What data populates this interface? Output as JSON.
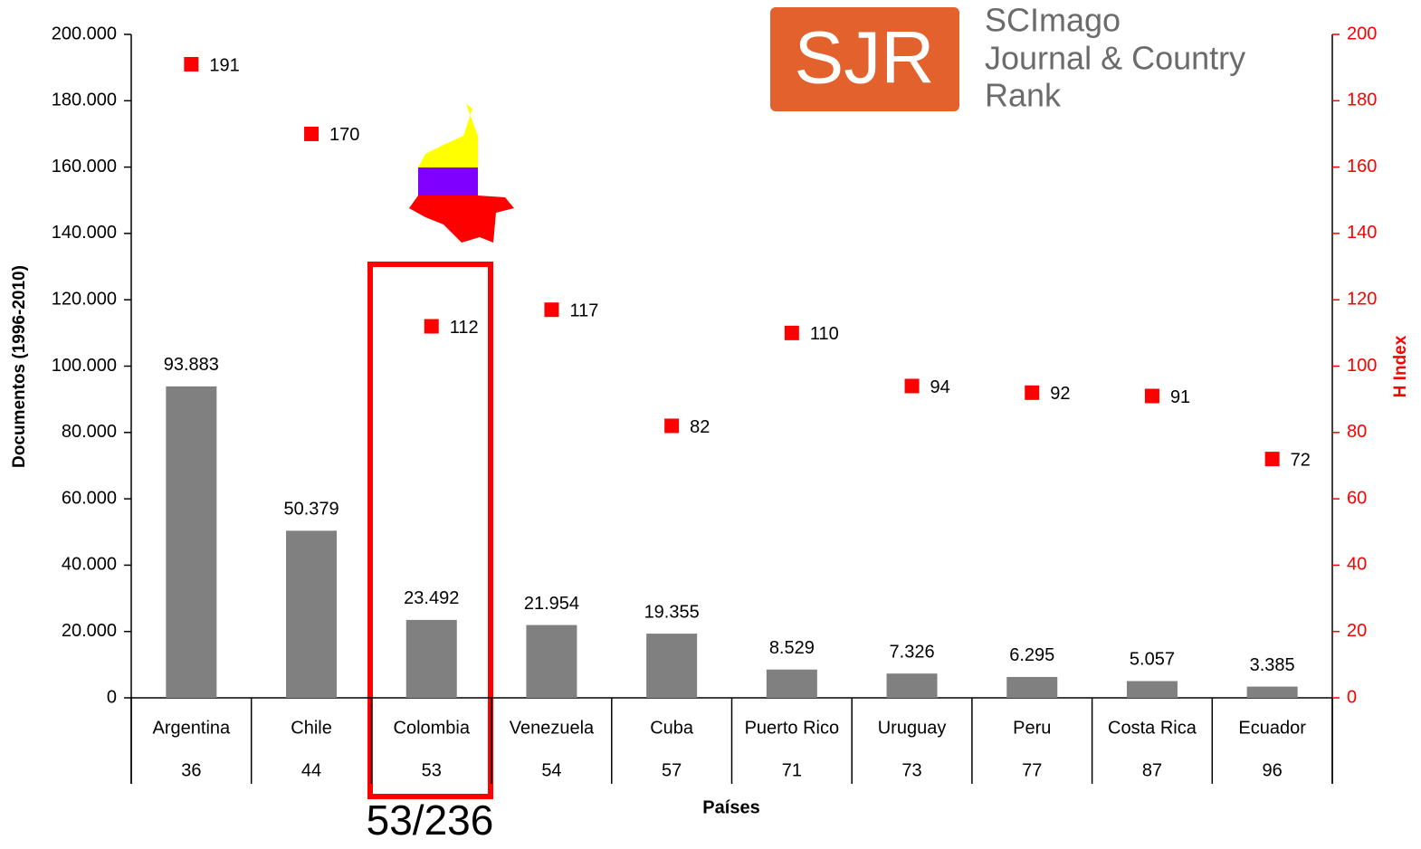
{
  "chart_data": {
    "type": "bar",
    "ylabel": "Documentos (1996-2010)",
    "y2label": "H Index",
    "xlabel": "Países",
    "annotation": "53/236",
    "logo": {
      "mark": "SJR",
      "lines": [
        "SCImago",
        "Journal & Country",
        "Rank"
      ]
    },
    "categories": [
      "Argentina",
      "Chile",
      "Colombia",
      "Venezuela",
      "Cuba",
      "Puerto Rico",
      "Uruguay",
      "Peru",
      "Costa Rica",
      "Ecuador"
    ],
    "ranks": [
      36,
      44,
      53,
      54,
      57,
      71,
      73,
      77,
      87,
      96
    ],
    "series": [
      {
        "type": "bar",
        "color": "#808080",
        "values": [
          93883,
          50379,
          23492,
          21954,
          19355,
          8529,
          7326,
          6295,
          5057,
          3385
        ],
        "value_labels": [
          "93.883",
          "50.379",
          "23.492",
          "21.954",
          "19.355",
          "8.529",
          "7.326",
          "6.295",
          "5.057",
          "3.385"
        ]
      },
      {
        "type": "scatter",
        "axis": "y2",
        "color": "#ff0000",
        "values": [
          191,
          170,
          112,
          117,
          82,
          110,
          94,
          92,
          91,
          72
        ]
      }
    ],
    "ylim": [
      0,
      200000
    ],
    "yticks": [
      0,
      {
        "value": 20000,
        "label": "20.000"
      },
      {
        "value": 40000,
        "label": "40.000"
      },
      {
        "value": 60000,
        "label": "60.000"
      },
      {
        "value": 80000,
        "label": "80.000"
      },
      {
        "value": 100000,
        "label": "100.000"
      },
      {
        "value": 120000,
        "label": "120.000"
      },
      {
        "value": 140000,
        "label": "140.000"
      },
      {
        "value": 160000,
        "label": "160.000"
      },
      {
        "value": 180000,
        "label": "180.000"
      },
      {
        "value": 200000,
        "label": "200.000"
      }
    ],
    "y2lim": [
      0,
      200
    ],
    "y2ticks": [
      0,
      20,
      40,
      60,
      80,
      100,
      120,
      140,
      160,
      180,
      200
    ],
    "y2_color": "#ff0000"
  }
}
